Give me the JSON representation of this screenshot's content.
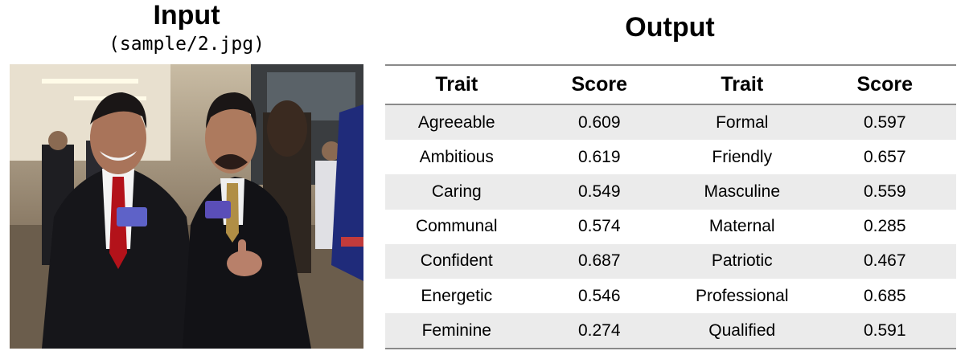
{
  "input": {
    "title": "Input",
    "subtitle": "(sample/2.jpg)"
  },
  "output": {
    "title": "Output",
    "headers": [
      "Trait",
      "Score",
      "Trait",
      "Score"
    ],
    "rows": [
      [
        "Agreeable",
        "0.609",
        "Formal",
        "0.597"
      ],
      [
        "Ambitious",
        "0.619",
        "Friendly",
        "0.657"
      ],
      [
        "Caring",
        "0.549",
        "Masculine",
        "0.559"
      ],
      [
        "Communal",
        "0.574",
        "Maternal",
        "0.285"
      ],
      [
        "Confident",
        "0.687",
        "Patriotic",
        "0.467"
      ],
      [
        "Energetic",
        "0.546",
        "Professional",
        "0.685"
      ],
      [
        "Feminine",
        "0.274",
        "Qualified",
        "0.591"
      ]
    ]
  },
  "colors": {
    "row_shade": "#ebebeb",
    "rule": "#8a8a8a"
  }
}
